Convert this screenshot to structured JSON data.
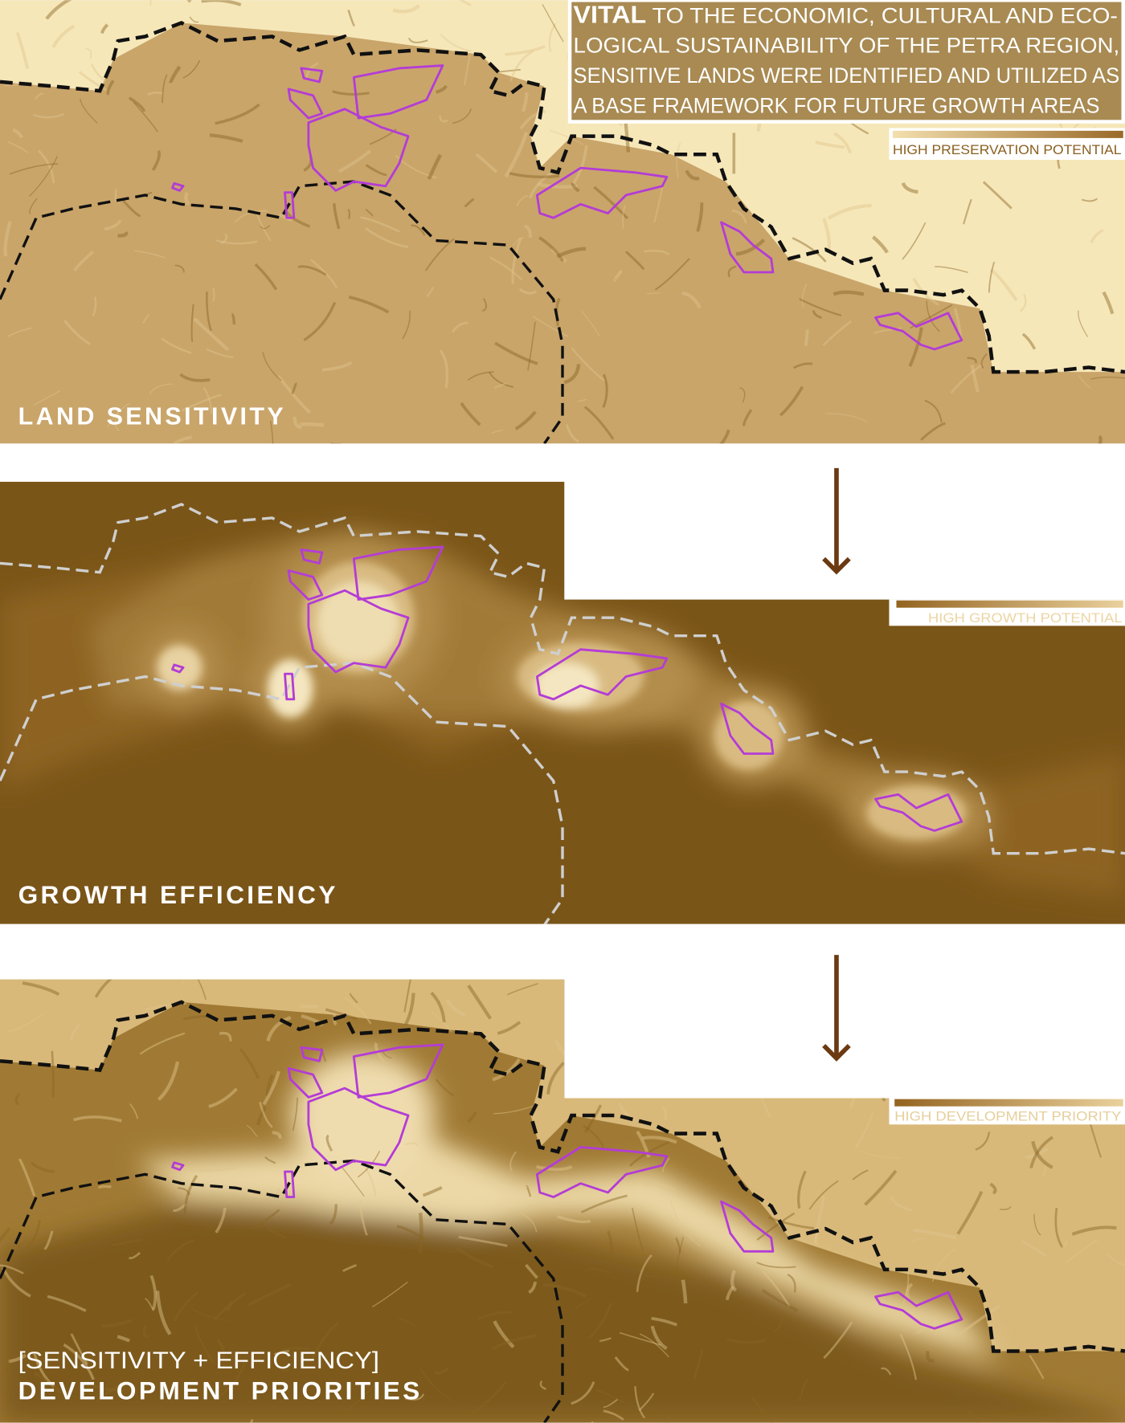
{
  "intro": {
    "lead": "VITAL",
    "lines": [
      " TO THE ECONOMIC, CULTURAL AND ECO-",
      "LOGICAL SUSTAINABILITY OF THE PETRA REGION,",
      "SENSITIVE LANDS WERE IDENTIFIED AND UTILIZED AS",
      "A BASE FRAMEWORK FOR FUTURE GROWTH AREAS"
    ],
    "box_color": "#a88a52"
  },
  "panels": [
    {
      "title": "LAND SENSITIVITY",
      "legend": "HIGH PRESERVATION POTENTIAL",
      "legend_color": "#8a6020"
    },
    {
      "title": "GROWTH EFFICIENCY",
      "legend": "HIGH GROWTH POTENTIAL",
      "legend_color": "#ecd5a3"
    },
    {
      "subtitle": "[SENSITIVITY + EFFICIENCY]",
      "title": "DEVELOPMENT PRIORITIES",
      "legend": "HIGH DEVELOPMENT PRIORITY",
      "legend_color": "#e6cf9c"
    }
  ],
  "colors": {
    "site_outline": "#b43cd6",
    "boundary_dark": "#111111",
    "boundary_light": "#cfcfcf",
    "arrow": "#6b3a12",
    "map_light": "#f6e7b9",
    "map_mid": "#c9a76a",
    "map_dark": "#7a5518"
  },
  "icons": [
    "arrow-down-icon",
    "arrow-down-icon"
  ]
}
